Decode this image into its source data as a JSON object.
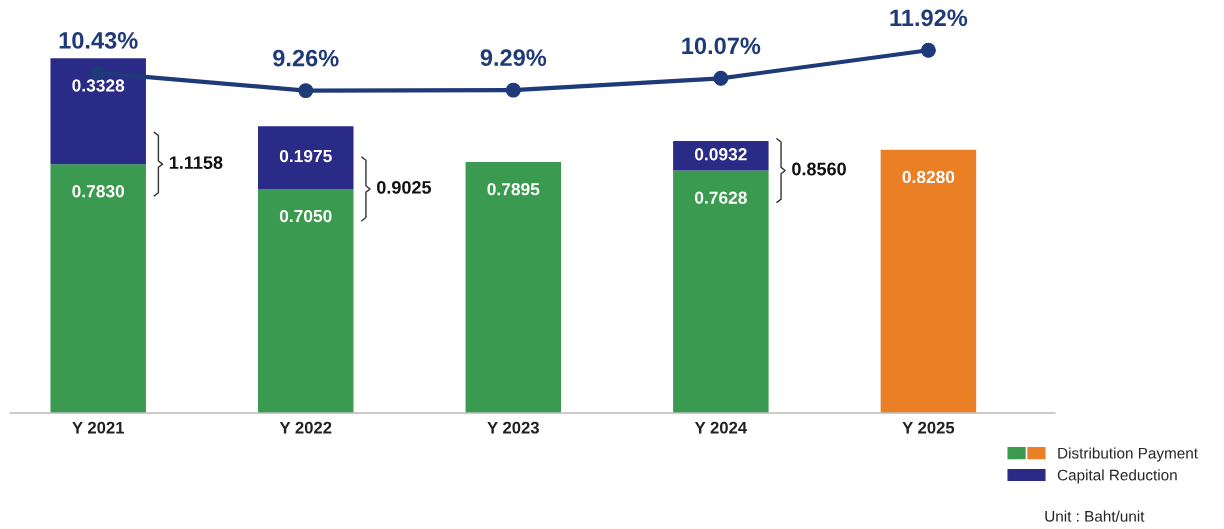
{
  "chart_data": {
    "type": "bar",
    "stacked": true,
    "categories": [
      "Y 2021",
      "Y 2022",
      "Y 2023",
      "Y 2024",
      "Y 2025"
    ],
    "series": [
      {
        "name": "Distribution Payment",
        "colors": [
          "#3a9a4f",
          "#3a9a4f",
          "#3a9a4f",
          "#3a9a4f",
          "#ea7f26"
        ],
        "values": [
          0.783,
          0.705,
          0.7895,
          0.7628,
          0.828
        ],
        "value_labels": [
          "0.7830",
          "0.7050",
          "0.7895",
          "0.7628",
          "0.8280"
        ]
      },
      {
        "name": "Capital Reduction",
        "color": "#2a2b86",
        "values": [
          0.3328,
          0.1975,
          null,
          0.0932,
          null
        ],
        "value_labels": [
          "0.3328",
          "0.1975",
          null,
          "0.0932",
          null
        ]
      },
      {
        "type": "line",
        "axis": "y2",
        "color": "#1f3a78",
        "marker": "circle",
        "values": [
          10.43,
          9.26,
          9.29,
          10.07,
          11.92
        ],
        "value_labels": [
          "10.43%",
          "9.26%",
          "9.29%",
          "10.07%",
          "11.92%"
        ]
      }
    ],
    "totals": [
      "1.1158",
      "0.9025",
      null,
      "0.8560",
      null
    ],
    "tick_labels": "x",
    "legend": "bottom right",
    "annotations": [
      "Unit : Baht/unit"
    ]
  }
}
